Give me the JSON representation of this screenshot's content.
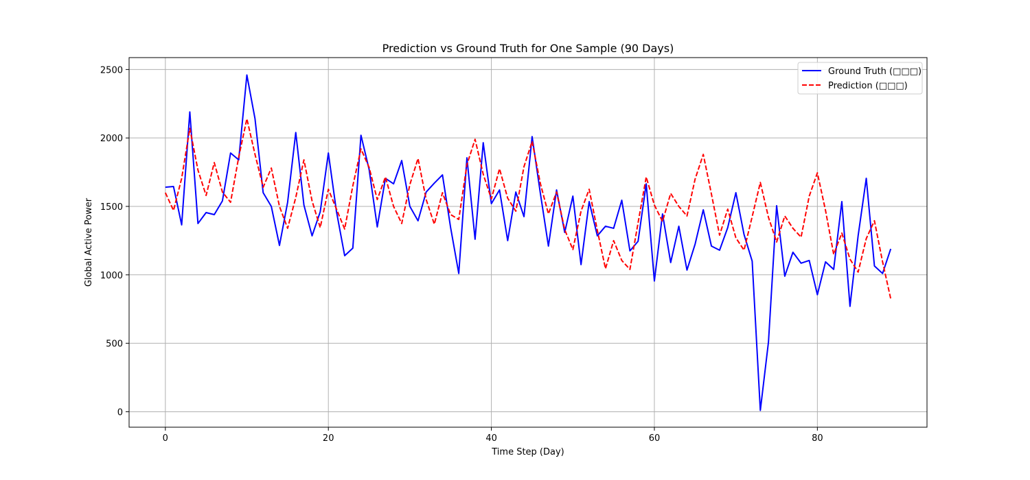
{
  "chart_data": {
    "type": "line",
    "title": "Prediction vs Ground Truth for One Sample (90 Days)",
    "xlabel": "Time Step (Day)",
    "ylabel": "Global Active Power",
    "xlim": [
      -4.45,
      93.45
    ],
    "ylim": [
      -113,
      2587
    ],
    "xticks": [
      0,
      20,
      40,
      60,
      80
    ],
    "yticks": [
      0,
      500,
      1000,
      1500,
      2000,
      2500
    ],
    "grid": true,
    "legend_position": "top-right",
    "series": [
      {
        "name": "Ground Truth (□□□)",
        "color": "#0000ff",
        "linestyle": "solid",
        "values": [
          1640,
          1645,
          1365,
          2190,
          1375,
          1455,
          1440,
          1540,
          1890,
          1840,
          2460,
          2140,
          1600,
          1500,
          1215,
          1530,
          2040,
          1510,
          1285,
          1460,
          1890,
          1460,
          1140,
          1195,
          2020,
          1770,
          1350,
          1705,
          1665,
          1835,
          1500,
          1395,
          1605,
          1670,
          1730,
          1345,
          1010,
          1855,
          1260,
          1965,
          1520,
          1620,
          1250,
          1605,
          1425,
          2010,
          1600,
          1210,
          1620,
          1310,
          1575,
          1075,
          1535,
          1285,
          1355,
          1340,
          1545,
          1175,
          1245,
          1665,
          955,
          1445,
          1090,
          1355,
          1035,
          1225,
          1475,
          1210,
          1180,
          1345,
          1600,
          1295,
          1100,
          10,
          510,
          1505,
          990,
          1165,
          1085,
          1105,
          855,
          1095,
          1040,
          1535,
          770,
          1285,
          1705,
          1065,
          1010,
          1190
        ]
      },
      {
        "name": "Prediction (□□□)",
        "color": "#ff0000",
        "linestyle": "dashed",
        "values": [
          1600,
          1470,
          1705,
          2070,
          1765,
          1580,
          1820,
          1605,
          1530,
          1860,
          2140,
          1880,
          1640,
          1780,
          1500,
          1340,
          1565,
          1840,
          1540,
          1345,
          1625,
          1480,
          1335,
          1650,
          1920,
          1785,
          1550,
          1715,
          1500,
          1375,
          1660,
          1850,
          1550,
          1370,
          1600,
          1440,
          1405,
          1805,
          1990,
          1735,
          1555,
          1775,
          1560,
          1465,
          1790,
          1975,
          1670,
          1445,
          1605,
          1330,
          1185,
          1465,
          1625,
          1325,
          1045,
          1250,
          1105,
          1040,
          1380,
          1715,
          1510,
          1390,
          1595,
          1500,
          1430,
          1700,
          1880,
          1590,
          1290,
          1480,
          1270,
          1180,
          1425,
          1675,
          1420,
          1240,
          1430,
          1340,
          1275,
          1575,
          1745,
          1470,
          1150,
          1305,
          1115,
          1020,
          1265,
          1395,
          1095,
          825
        ]
      }
    ]
  }
}
